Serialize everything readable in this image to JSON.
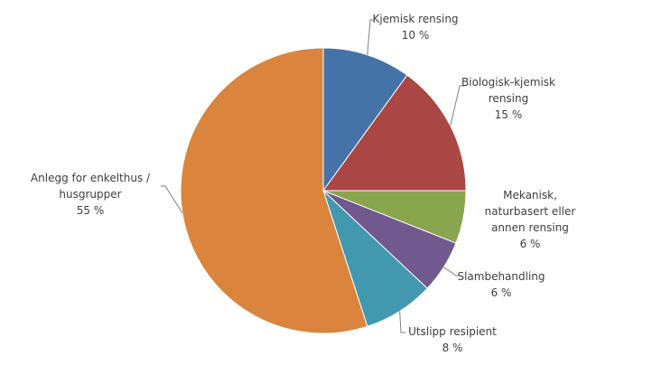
{
  "chart_data": {
    "type": "pie",
    "categories": [
      "Kjemisk rensing",
      "Biologisk-kjemisk rensing",
      "Mekanisk, naturbasert eller annen rensing",
      "Slambehandling",
      "Utslipp resipient",
      "Anlegg for enkelthus / husgrupper"
    ],
    "values": [
      10,
      15,
      6,
      6,
      8,
      55
    ],
    "value_labels": [
      "10 %",
      "15 %",
      "6 %",
      "6 %",
      "8 %",
      "55 %"
    ],
    "colors": [
      "#4572a7",
      "#aa4643",
      "#89a54e",
      "#71588f",
      "#4198af",
      "#db843d"
    ]
  }
}
